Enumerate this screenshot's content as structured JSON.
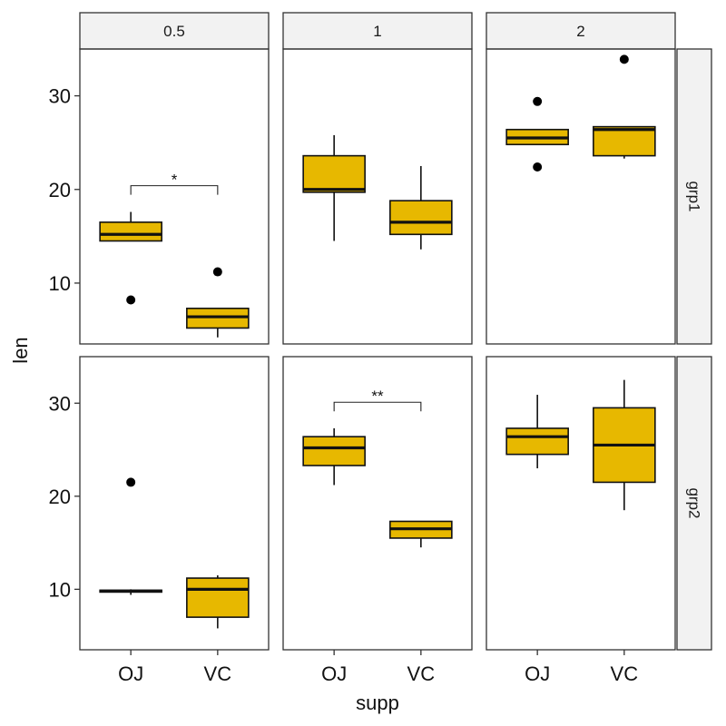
{
  "chart_data": {
    "type": "box",
    "xlabel": "supp",
    "ylabel": "len",
    "categories": [
      "OJ",
      "VC"
    ],
    "ylim": [
      3.5,
      35
    ],
    "yticks": [
      10,
      20,
      30
    ],
    "facet_cols": [
      "0.5",
      "1",
      "2"
    ],
    "facet_rows": [
      "grp1",
      "grp2"
    ],
    "fill_color": "#E7B800",
    "panels": [
      {
        "row": "grp1",
        "col": "0.5",
        "boxes": [
          {
            "cat": "OJ",
            "q1": 14.5,
            "median": 15.2,
            "q3": 16.5,
            "lower": 14.5,
            "upper": 17.6,
            "outliers": [
              8.2
            ]
          },
          {
            "cat": "VC",
            "q1": 5.2,
            "median": 6.4,
            "q3": 7.3,
            "lower": 4.2,
            "upper": 7.3,
            "outliers": [
              11.2
            ]
          }
        ],
        "signif": {
          "label": "*",
          "y": 20.4
        }
      },
      {
        "row": "grp1",
        "col": "1",
        "boxes": [
          {
            "cat": "OJ",
            "q1": 19.7,
            "median": 20.0,
            "q3": 23.6,
            "lower": 14.5,
            "upper": 25.8,
            "outliers": []
          },
          {
            "cat": "VC",
            "q1": 15.2,
            "median": 16.5,
            "q3": 18.8,
            "lower": 13.6,
            "upper": 22.5,
            "outliers": []
          }
        ],
        "signif": null
      },
      {
        "row": "grp1",
        "col": "2",
        "boxes": [
          {
            "cat": "OJ",
            "q1": 24.8,
            "median": 25.5,
            "q3": 26.4,
            "lower": 24.8,
            "upper": 26.4,
            "outliers": [
              29.4,
              22.4
            ]
          },
          {
            "cat": "VC",
            "q1": 23.6,
            "median": 26.4,
            "q3": 26.7,
            "lower": 23.3,
            "upper": 26.7,
            "outliers": [
              33.9
            ]
          }
        ],
        "signif": null
      },
      {
        "row": "grp2",
        "col": "0.5",
        "boxes": [
          {
            "cat": "OJ",
            "q1": 9.7,
            "median": 9.8,
            "q3": 9.9,
            "lower": 9.4,
            "upper": 10.0,
            "outliers": [
              21.5
            ]
          },
          {
            "cat": "VC",
            "q1": 7.0,
            "median": 10.0,
            "q3": 11.2,
            "lower": 5.8,
            "upper": 11.5,
            "outliers": []
          }
        ],
        "signif": null
      },
      {
        "row": "grp2",
        "col": "1",
        "boxes": [
          {
            "cat": "OJ",
            "q1": 23.3,
            "median": 25.2,
            "q3": 26.4,
            "lower": 21.2,
            "upper": 27.3,
            "outliers": []
          },
          {
            "cat": "VC",
            "q1": 15.5,
            "median": 16.5,
            "q3": 17.3,
            "lower": 14.5,
            "upper": 17.3,
            "outliers": []
          }
        ],
        "signif": {
          "label": "**",
          "y": 30.1
        }
      },
      {
        "row": "grp2",
        "col": "2",
        "boxes": [
          {
            "cat": "OJ",
            "q1": 24.5,
            "median": 26.4,
            "q3": 27.3,
            "lower": 23.0,
            "upper": 30.9,
            "outliers": []
          },
          {
            "cat": "VC",
            "q1": 21.5,
            "median": 25.5,
            "q3": 29.5,
            "lower": 18.5,
            "upper": 32.5,
            "outliers": []
          }
        ],
        "signif": null
      }
    ]
  }
}
